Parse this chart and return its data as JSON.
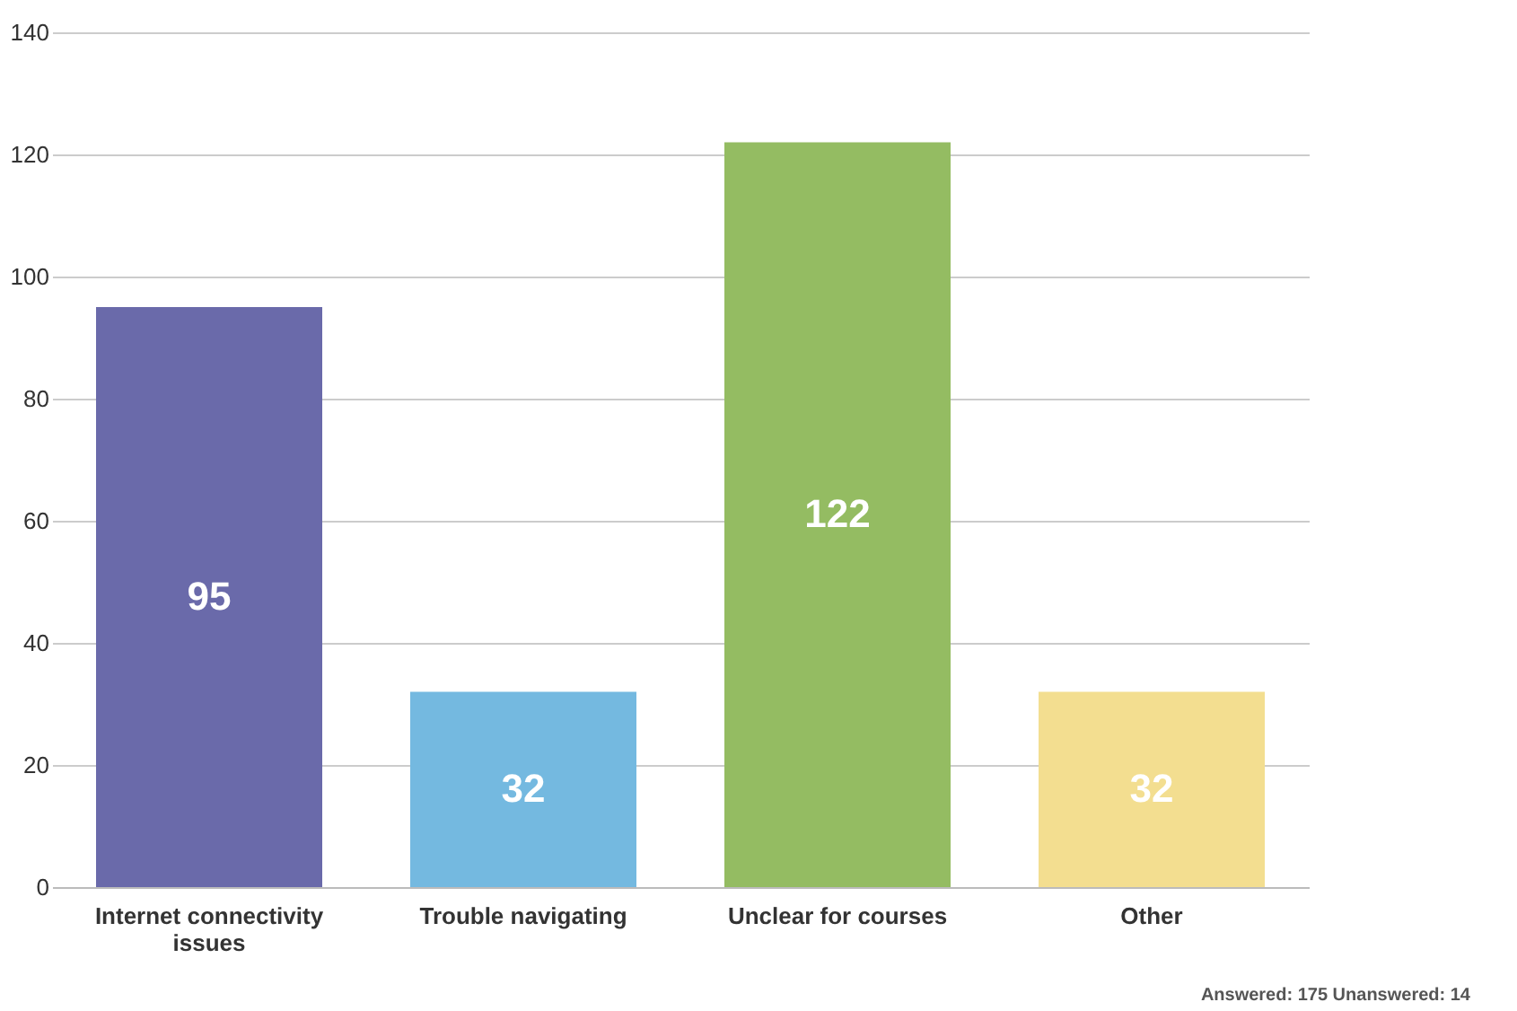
{
  "chart_data": {
    "type": "bar",
    "categories": [
      "Internet connectivity issues",
      "Trouble navigating",
      "Unclear for courses",
      "Other"
    ],
    "values": [
      95,
      32,
      122,
      32
    ],
    "colors": [
      "#6a6aaa",
      "#74b9e0",
      "#94bc62",
      "#f3de90"
    ],
    "ylim": [
      0,
      140
    ],
    "yticks": [
      0,
      20,
      40,
      60,
      80,
      100,
      120,
      140
    ],
    "grid": "y",
    "data_labels": true,
    "annotations": [
      "Answered: 175   Unanswered: 14"
    ]
  }
}
